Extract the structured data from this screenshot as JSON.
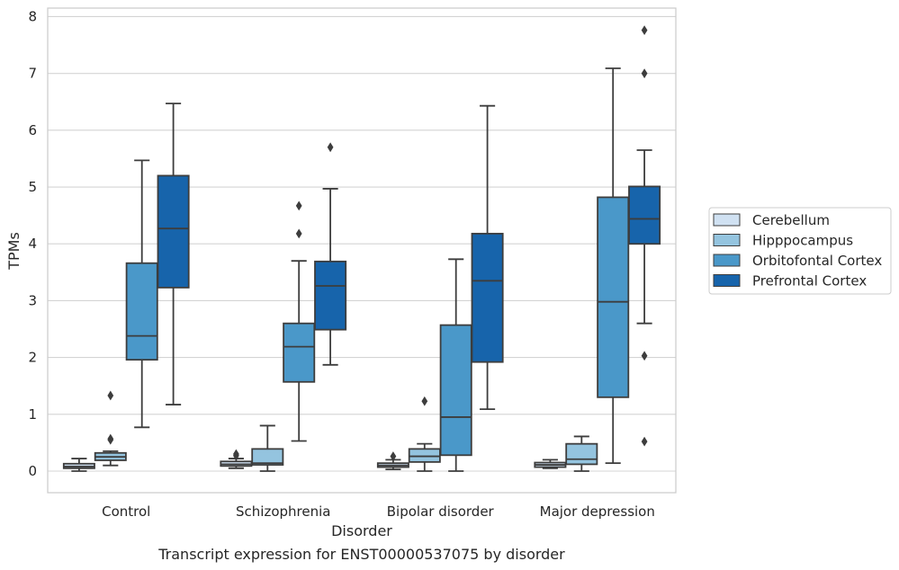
{
  "caption": "Transcript expression for ENST00000537075 by disorder",
  "chart_data": {
    "type": "box",
    "xlabel": "Disorder",
    "ylabel": "TPMs",
    "ylim": [
      -0.38,
      8.15
    ],
    "yticks": [
      0,
      1,
      2,
      3,
      4,
      5,
      6,
      7,
      8
    ],
    "grid": "horizontal",
    "legend_position": "right",
    "categories": [
      "Control",
      "Schizophrenia",
      "Bipolar disorder",
      "Major depression"
    ],
    "series": [
      {
        "name": "Cerebellum",
        "color": "#d0e1f2",
        "boxes": [
          {
            "category": "Control",
            "whisker_low": 0.0,
            "q1": 0.05,
            "median": 0.08,
            "q3": 0.13,
            "whisker_high": 0.22,
            "outliers": []
          },
          {
            "category": "Schizophrenia",
            "whisker_low": 0.05,
            "q1": 0.09,
            "median": 0.12,
            "q3": 0.17,
            "whisker_high": 0.22,
            "outliers": [
              0.27,
              0.3
            ]
          },
          {
            "category": "Bipolar disorder",
            "whisker_low": 0.03,
            "q1": 0.07,
            "median": 0.1,
            "q3": 0.14,
            "whisker_high": 0.2,
            "outliers": [
              0.26
            ]
          },
          {
            "category": "Major depression",
            "whisker_low": 0.05,
            "q1": 0.07,
            "median": 0.11,
            "q3": 0.15,
            "whisker_high": 0.2,
            "outliers": []
          }
        ]
      },
      {
        "name": "Hipppocampus",
        "color": "#94c4df",
        "boxes": [
          {
            "category": "Control",
            "whisker_low": 0.1,
            "q1": 0.19,
            "median": 0.25,
            "q3": 0.32,
            "whisker_high": 0.35,
            "outliers": [
              0.55,
              0.57,
              1.33
            ]
          },
          {
            "category": "Schizophrenia",
            "whisker_low": 0.0,
            "q1": 0.11,
            "median": 0.14,
            "q3": 0.39,
            "whisker_high": 0.8,
            "outliers": []
          },
          {
            "category": "Bipolar disorder",
            "whisker_low": 0.0,
            "q1": 0.16,
            "median": 0.26,
            "q3": 0.39,
            "whisker_high": 0.48,
            "outliers": [
              1.23
            ]
          },
          {
            "category": "Major depression",
            "whisker_low": 0.0,
            "q1": 0.12,
            "median": 0.21,
            "q3": 0.48,
            "whisker_high": 0.61,
            "outliers": []
          }
        ]
      },
      {
        "name": "Orbitofontal Cortex",
        "color": "#4a98c9",
        "boxes": [
          {
            "category": "Control",
            "whisker_low": 0.77,
            "q1": 1.96,
            "median": 2.38,
            "q3": 3.66,
            "whisker_high": 5.47,
            "outliers": []
          },
          {
            "category": "Schizophrenia",
            "whisker_low": 0.53,
            "q1": 1.57,
            "median": 2.19,
            "q3": 2.6,
            "whisker_high": 3.7,
            "outliers": [
              4.18,
              4.67
            ]
          },
          {
            "category": "Bipolar disorder",
            "whisker_low": 0.0,
            "q1": 0.28,
            "median": 0.95,
            "q3": 2.57,
            "whisker_high": 3.73,
            "outliers": []
          },
          {
            "category": "Major depression",
            "whisker_low": 0.14,
            "q1": 1.3,
            "median": 2.98,
            "q3": 4.82,
            "whisker_high": 7.09,
            "outliers": []
          }
        ]
      },
      {
        "name": "Prefrontal Cortex",
        "color": "#1764ab",
        "boxes": [
          {
            "category": "Control",
            "whisker_low": 1.17,
            "q1": 3.23,
            "median": 4.27,
            "q3": 5.2,
            "whisker_high": 6.47,
            "outliers": []
          },
          {
            "category": "Schizophrenia",
            "whisker_low": 1.87,
            "q1": 2.49,
            "median": 3.26,
            "q3": 3.69,
            "whisker_high": 4.97,
            "outliers": [
              5.7
            ]
          },
          {
            "category": "Bipolar disorder",
            "whisker_low": 1.09,
            "q1": 1.92,
            "median": 3.35,
            "q3": 4.18,
            "whisker_high": 6.43,
            "outliers": []
          },
          {
            "category": "Major depression",
            "whisker_low": 2.6,
            "q1": 4.0,
            "median": 4.44,
            "q3": 5.01,
            "whisker_high": 5.65,
            "outliers": [
              0.52,
              2.03,
              7.0,
              7.76
            ]
          }
        ]
      }
    ]
  }
}
